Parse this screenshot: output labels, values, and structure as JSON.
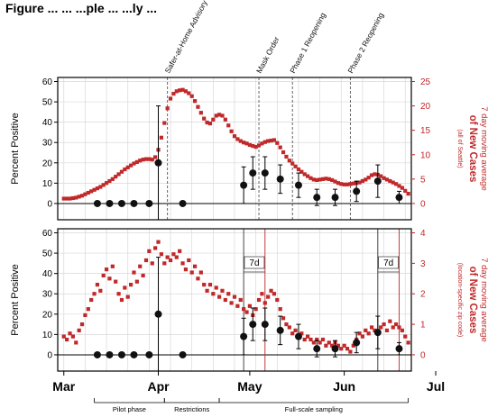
{
  "header_text": "Figure ...  ...  ...ple ... ...ly ...",
  "colors": {
    "cases": "#c0282a",
    "positivity": "#111111",
    "grid": "#d9d9d9"
  },
  "chart_data": [
    {
      "type": "scatter",
      "title": "",
      "xlabel": "",
      "ylabel": "Percent Positive",
      "y2label_lines": [
        "7 day moving average",
        "of New Cases",
        "(all of Seattle)"
      ],
      "ylim": [
        -8,
        62
      ],
      "yticks": [
        0,
        10,
        20,
        30,
        40,
        50,
        60
      ],
      "y2lim": [
        0,
        25
      ],
      "y2ticks": [
        0,
        5,
        10,
        15,
        20,
        25
      ],
      "grid": true,
      "events": [
        {
          "label": "Safer-at-Home Advisory",
          "day": 34
        },
        {
          "label": "Mask Order",
          "day": 64
        },
        {
          "label": "Phase 1 Reopening",
          "day": 75
        },
        {
          "label": "Phase 2 Reopening",
          "day": 94
        }
      ],
      "positivity_series": {
        "name": "",
        "x": [
          11,
          15,
          19,
          23,
          28,
          31,
          39,
          59,
          62,
          66,
          71,
          77,
          83,
          89,
          96,
          103,
          110
        ],
        "y": [
          0,
          0,
          0,
          0,
          0,
          20,
          0,
          9,
          15,
          15,
          12,
          9,
          3,
          3,
          6,
          11,
          3
        ],
        "err": [
          0,
          0,
          0,
          0,
          0,
          28,
          0,
          9,
          8,
          8,
          7,
          6,
          4,
          4,
          5,
          8,
          3
        ]
      },
      "cases_series": {
        "name": "",
        "x": [
          0,
          1,
          2,
          3,
          4,
          5,
          6,
          7,
          8,
          9,
          10,
          11,
          12,
          13,
          14,
          15,
          16,
          17,
          18,
          19,
          20,
          21,
          22,
          23,
          24,
          25,
          26,
          27,
          28,
          29,
          30,
          31,
          32,
          33,
          34,
          35,
          36,
          37,
          38,
          39,
          40,
          41,
          42,
          43,
          44,
          45,
          46,
          47,
          48,
          49,
          50,
          51,
          52,
          53,
          54,
          55,
          56,
          57,
          58,
          59,
          60,
          61,
          62,
          63,
          64,
          65,
          66,
          67,
          68,
          69,
          70,
          71,
          72,
          73,
          74,
          75,
          76,
          77,
          78,
          79,
          80,
          81,
          82,
          83,
          84,
          85,
          86,
          87,
          88,
          89,
          90,
          91,
          92,
          93,
          94,
          95,
          96,
          97,
          98,
          99,
          100,
          101,
          102,
          103,
          104,
          105,
          106,
          107,
          108,
          109,
          110,
          111,
          112,
          113
        ],
        "y": [
          1.0,
          1.0,
          1.0,
          1.1,
          1.2,
          1.4,
          1.6,
          1.9,
          2.2,
          2.5,
          2.8,
          3.1,
          3.4,
          3.8,
          4.2,
          4.6,
          5.0,
          5.5,
          6.0,
          6.5,
          7.0,
          7.4,
          7.8,
          8.2,
          8.5,
          8.8,
          9.0,
          9.1,
          9.1,
          9.0,
          9.5,
          11.0,
          13.5,
          16.5,
          19.5,
          21.5,
          22.5,
          23.0,
          23.2,
          23.3,
          23.0,
          22.6,
          22.0,
          21.0,
          19.8,
          18.6,
          17.4,
          16.6,
          16.4,
          17.2,
          18.0,
          18.2,
          18.0,
          17.2,
          16.0,
          14.8,
          13.8,
          13.2,
          12.8,
          12.5,
          12.3,
          12.0,
          11.8,
          11.6,
          11.9,
          12.3,
          12.6,
          12.8,
          12.9,
          13.0,
          12.4,
          11.5,
          10.5,
          9.6,
          8.8,
          8.2,
          7.6,
          7.0,
          6.5,
          6.0,
          5.6,
          5.2,
          4.9,
          4.8,
          4.9,
          5.0,
          5.1,
          5.0,
          4.8,
          4.5,
          4.2,
          4.0,
          3.9,
          3.9,
          4.0,
          4.1,
          4.2,
          4.3,
          4.6,
          4.9,
          5.3,
          5.8,
          6.0,
          5.9,
          5.6,
          5.2,
          4.9,
          4.6,
          4.3,
          4.0,
          3.6,
          3.2,
          2.6,
          2.0
        ]
      }
    },
    {
      "type": "scatter",
      "title": "",
      "xlabel": "",
      "ylabel": "Percent Positive",
      "y2label_lines": [
        "7 day moving average",
        "of New Cases",
        "(location-specific zip code)"
      ],
      "ylim": [
        -8,
        62
      ],
      "yticks": [
        0,
        10,
        20,
        30,
        40,
        50,
        60
      ],
      "y2lim": [
        0,
        4
      ],
      "y2ticks": [
        0,
        1,
        2,
        3,
        4
      ],
      "grid": true,
      "lag_annotations": [
        {
          "label": "7d",
          "start_day": 59,
          "end_day": 66
        },
        {
          "label": "7d",
          "start_day": 103,
          "end_day": 110
        }
      ],
      "positivity_series": {
        "name": "",
        "x": [
          11,
          15,
          19,
          23,
          28,
          31,
          39,
          59,
          62,
          66,
          71,
          77,
          83,
          89,
          96,
          103,
          110
        ],
        "y": [
          0,
          0,
          0,
          0,
          0,
          20,
          0,
          9,
          15,
          15,
          12,
          9,
          3,
          3,
          6,
          11,
          3
        ],
        "err": [
          0,
          0,
          0,
          0,
          0,
          28,
          0,
          9,
          8,
          8,
          7,
          6,
          4,
          4,
          5,
          8,
          3
        ]
      },
      "cases_series": {
        "name": "",
        "x": [
          0,
          1,
          2,
          3,
          4,
          5,
          6,
          7,
          8,
          9,
          10,
          11,
          12,
          13,
          14,
          15,
          16,
          17,
          18,
          19,
          20,
          21,
          22,
          23,
          24,
          25,
          26,
          27,
          28,
          29,
          30,
          31,
          32,
          33,
          34,
          35,
          36,
          37,
          38,
          39,
          40,
          41,
          42,
          43,
          44,
          45,
          46,
          47,
          48,
          49,
          50,
          51,
          52,
          53,
          54,
          55,
          56,
          57,
          58,
          59,
          60,
          61,
          62,
          63,
          64,
          65,
          66,
          67,
          68,
          69,
          70,
          71,
          72,
          73,
          74,
          75,
          76,
          77,
          78,
          79,
          80,
          81,
          82,
          83,
          84,
          85,
          86,
          87,
          88,
          89,
          90,
          91,
          92,
          93,
          94,
          95,
          96,
          97,
          98,
          99,
          100,
          101,
          102,
          103,
          104,
          105,
          106,
          107,
          108,
          109,
          110,
          111,
          112,
          113
        ],
        "y": [
          0.6,
          0.5,
          0.7,
          0.6,
          0.4,
          0.8,
          1.0,
          1.3,
          1.5,
          1.8,
          2.0,
          2.3,
          2.1,
          2.6,
          2.8,
          2.5,
          2.9,
          2.4,
          2.0,
          1.8,
          2.2,
          1.9,
          2.3,
          2.7,
          2.4,
          2.9,
          2.6,
          3.1,
          3.4,
          3.0,
          3.5,
          3.7,
          3.3,
          3.0,
          3.2,
          3.1,
          3.3,
          3.2,
          3.4,
          3.0,
          2.8,
          3.1,
          2.7,
          2.9,
          2.5,
          2.7,
          2.3,
          2.1,
          2.3,
          2.0,
          2.2,
          1.9,
          2.1,
          1.8,
          2.0,
          1.7,
          1.9,
          1.6,
          1.8,
          1.5,
          1.4,
          1.6,
          1.3,
          1.5,
          1.8,
          2.0,
          1.7,
          1.9,
          2.1,
          2.0,
          1.8,
          1.5,
          1.2,
          1.0,
          0.9,
          0.7,
          0.8,
          0.6,
          0.7,
          0.5,
          0.6,
          0.5,
          0.4,
          0.5,
          0.4,
          0.5,
          0.3,
          0.4,
          0.3,
          0.4,
          0.3,
          0.2,
          0.3,
          0.2,
          0.1,
          0.3,
          0.5,
          0.7,
          0.6,
          0.8,
          0.7,
          0.9,
          0.8,
          0.7,
          0.9,
          1.0,
          0.8,
          1.1,
          0.9,
          1.0,
          0.9,
          0.8,
          0.6,
          0.4
        ]
      }
    }
  ],
  "x_axis": {
    "labels": [
      "Mar",
      "Apr",
      "May",
      "Jun",
      "Jul"
    ],
    "label_days": [
      0,
      31,
      61,
      92,
      122
    ],
    "range_days": [
      -2,
      114
    ]
  },
  "phases": [
    {
      "label": "Pilot phase",
      "start_day": 10,
      "end_day": 33
    },
    {
      "label": "Restrictions",
      "start_day": 33,
      "end_day": 51
    },
    {
      "label": "Full-scale sampling",
      "start_day": 51,
      "end_day": 113
    }
  ]
}
